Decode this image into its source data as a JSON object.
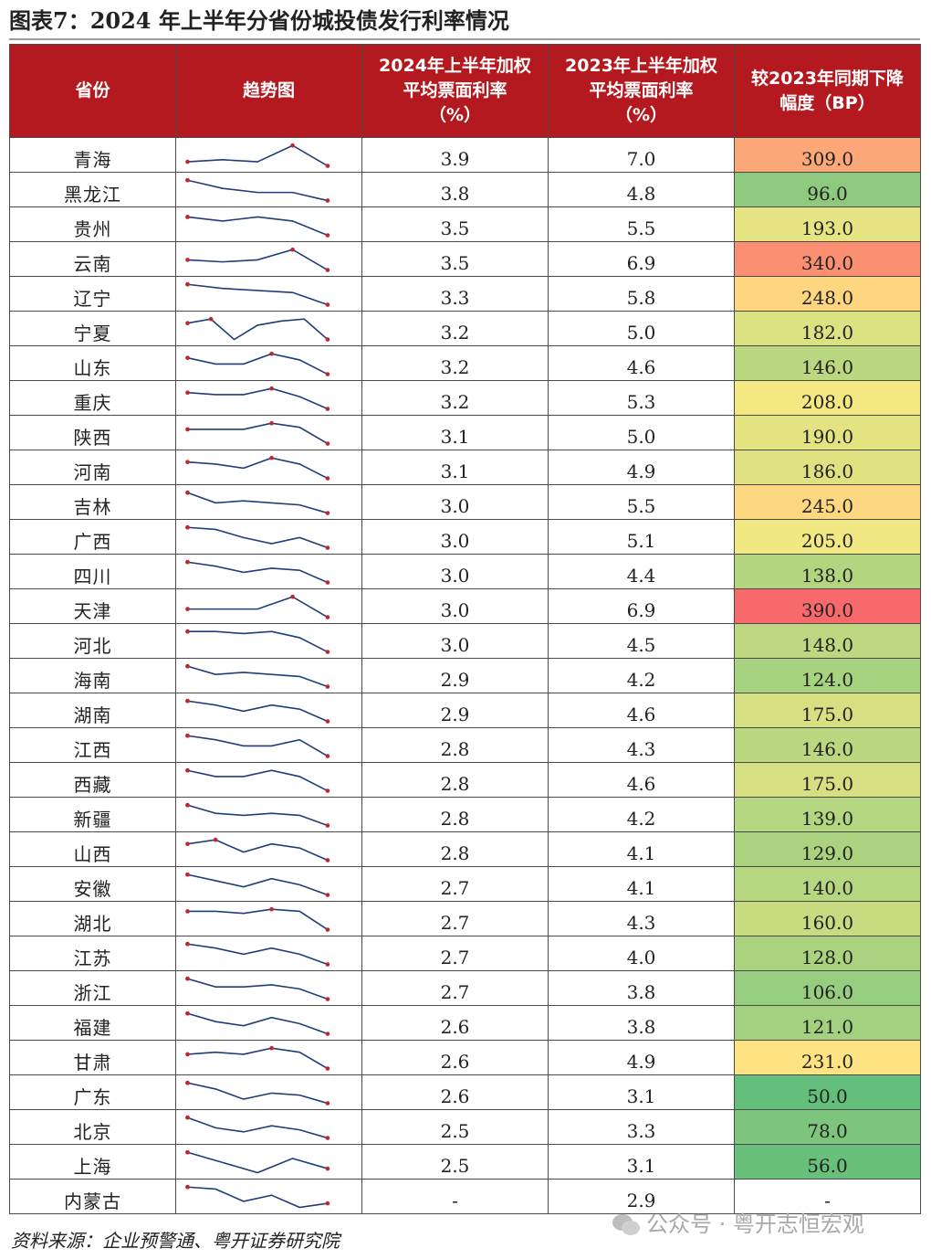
{
  "figure": {
    "title": "图表7：2024 年上半年分省份城投债发行利率情况",
    "source": "资料来源：企业预警通、粤开证券研究院",
    "watermark": "公众号 · 粤开志恒宏观"
  },
  "table": {
    "headers": {
      "province": "省份",
      "trend": "趋势图",
      "rate2024": [
        "2024年上半年加权",
        "平均票面利率",
        "（%）"
      ],
      "rate2023": [
        "2023年上半年加权",
        "平均票面利率",
        "（%）"
      ],
      "decline": [
        "较2023年同期下降",
        "幅度（BP）"
      ]
    },
    "colors": {
      "header_bg": "#b3191f",
      "spark_line": "#1f3d7a",
      "spark_marker": "#c0262e"
    },
    "rows": [
      {
        "province": "青海",
        "rate2024": "3.9",
        "rate2023": "7.0",
        "decline": "309.0",
        "trend": [
          0.8,
          0.7,
          0.8,
          0.0,
          1.0
        ]
      },
      {
        "province": "黑龙江",
        "rate2024": "3.8",
        "rate2023": "4.8",
        "decline": "96.0",
        "trend": [
          0.0,
          0.4,
          0.6,
          0.6,
          1.0
        ]
      },
      {
        "province": "贵州",
        "rate2024": "3.5",
        "rate2023": "5.5",
        "decline": "193.0",
        "trend": [
          0.1,
          0.3,
          0.1,
          0.3,
          1.0
        ]
      },
      {
        "province": "云南",
        "rate2024": "3.5",
        "rate2023": "6.9",
        "decline": "340.0",
        "trend": [
          0.5,
          0.6,
          0.5,
          0.0,
          1.0
        ]
      },
      {
        "province": "辽宁",
        "rate2024": "3.3",
        "rate2023": "5.8",
        "decline": "248.0",
        "trend": [
          0.0,
          0.2,
          0.3,
          0.4,
          1.0
        ]
      },
      {
        "province": "宁夏",
        "rate2024": "3.2",
        "rate2023": "5.0",
        "decline": "182.0",
        "trend": [
          0.2,
          0.0,
          1.0,
          0.3,
          0.1,
          0.0,
          1.0
        ]
      },
      {
        "province": "山东",
        "rate2024": "3.2",
        "rate2023": "4.6",
        "decline": "146.0",
        "trend": [
          0.2,
          0.5,
          0.5,
          0.0,
          0.3,
          1.0
        ]
      },
      {
        "province": "重庆",
        "rate2024": "3.2",
        "rate2023": "5.3",
        "decline": "208.0",
        "trend": [
          0.2,
          0.3,
          0.3,
          0.0,
          0.4,
          1.0
        ]
      },
      {
        "province": "陕西",
        "rate2024": "3.1",
        "rate2023": "5.0",
        "decline": "190.0",
        "trend": [
          0.3,
          0.3,
          0.3,
          0.0,
          0.2,
          1.0
        ]
      },
      {
        "province": "河南",
        "rate2024": "3.1",
        "rate2023": "4.9",
        "decline": "186.0",
        "trend": [
          0.2,
          0.3,
          0.5,
          0.0,
          0.3,
          1.0
        ]
      },
      {
        "province": "吉林",
        "rate2024": "3.0",
        "rate2023": "5.5",
        "decline": "245.0",
        "trend": [
          0.0,
          0.5,
          0.4,
          0.5,
          0.6,
          1.0
        ]
      },
      {
        "province": "广西",
        "rate2024": "3.0",
        "rate2023": "5.1",
        "decline": "205.0",
        "trend": [
          0.0,
          0.1,
          0.5,
          0.8,
          0.5,
          1.0
        ]
      },
      {
        "province": "四川",
        "rate2024": "3.0",
        "rate2023": "4.4",
        "decline": "138.0",
        "trend": [
          0.0,
          0.2,
          0.5,
          0.3,
          0.4,
          1.0
        ]
      },
      {
        "province": "天津",
        "rate2024": "3.0",
        "rate2023": "6.9",
        "decline": "390.0",
        "trend": [
          0.6,
          0.6,
          0.6,
          0.0,
          1.0
        ]
      },
      {
        "province": "河北",
        "rate2024": "3.0",
        "rate2023": "4.5",
        "decline": "148.0",
        "trend": [
          0.0,
          0.0,
          0.1,
          0.0,
          0.3,
          1.0
        ]
      },
      {
        "province": "海南",
        "rate2024": "2.9",
        "rate2023": "4.2",
        "decline": "124.0",
        "trend": [
          0.0,
          0.4,
          0.3,
          0.4,
          0.5,
          1.0
        ]
      },
      {
        "province": "湖南",
        "rate2024": "2.9",
        "rate2023": "4.6",
        "decline": "175.0",
        "trend": [
          0.0,
          0.2,
          0.5,
          0.2,
          0.4,
          1.0
        ]
      },
      {
        "province": "江西",
        "rate2024": "2.8",
        "rate2023": "4.3",
        "decline": "146.0",
        "trend": [
          0.0,
          0.2,
          0.5,
          0.5,
          0.2,
          1.0
        ]
      },
      {
        "province": "西藏",
        "rate2024": "2.8",
        "rate2023": "4.6",
        "decline": "175.0",
        "trend": [
          0.0,
          0.3,
          0.3,
          0.0,
          0.3,
          1.0
        ]
      },
      {
        "province": "新疆",
        "rate2024": "2.8",
        "rate2023": "4.2",
        "decline": "139.0",
        "trend": [
          0.0,
          0.4,
          0.5,
          0.4,
          0.5,
          1.0
        ]
      },
      {
        "province": "山西",
        "rate2024": "2.8",
        "rate2023": "4.1",
        "decline": "129.0",
        "trend": [
          0.2,
          0.0,
          0.6,
          0.2,
          0.4,
          1.0
        ]
      },
      {
        "province": "安徽",
        "rate2024": "2.7",
        "rate2023": "4.1",
        "decline": "140.0",
        "trend": [
          0.0,
          0.3,
          0.6,
          0.2,
          0.5,
          1.0
        ]
      },
      {
        "province": "湖北",
        "rate2024": "2.7",
        "rate2023": "4.3",
        "decline": "160.0",
        "trend": [
          0.1,
          0.1,
          0.2,
          0.0,
          0.1,
          1.0
        ]
      },
      {
        "province": "江苏",
        "rate2024": "2.7",
        "rate2023": "4.0",
        "decline": "128.0",
        "trend": [
          0.0,
          0.2,
          0.5,
          0.2,
          0.5,
          1.0
        ]
      },
      {
        "province": "浙江",
        "rate2024": "2.7",
        "rate2023": "3.8",
        "decline": "106.0",
        "trend": [
          0.0,
          0.4,
          0.4,
          0.3,
          0.5,
          1.0
        ]
      },
      {
        "province": "福建",
        "rate2024": "2.6",
        "rate2023": "3.8",
        "decline": "121.0",
        "trend": [
          0.0,
          0.4,
          0.6,
          0.2,
          0.5,
          1.0
        ]
      },
      {
        "province": "甘肃",
        "rate2024": "2.6",
        "rate2023": "4.9",
        "decline": "231.0",
        "trend": [
          0.3,
          0.2,
          0.3,
          0.0,
          0.2,
          1.0
        ]
      },
      {
        "province": "广东",
        "rate2024": "2.6",
        "rate2023": "3.1",
        "decline": "50.0",
        "trend": [
          0.0,
          0.3,
          0.8,
          0.5,
          0.6,
          1.0
        ]
      },
      {
        "province": "北京",
        "rate2024": "2.5",
        "rate2023": "3.3",
        "decline": "78.0",
        "trend": [
          0.0,
          0.5,
          0.7,
          0.4,
          0.6,
          1.0
        ]
      },
      {
        "province": "上海",
        "rate2024": "2.5",
        "rate2023": "3.1",
        "decline": "56.0",
        "trend": [
          0.0,
          0.5,
          1.0,
          0.3,
          0.8
        ]
      },
      {
        "province": "内蒙古",
        "rate2024": "-",
        "rate2023": "2.9",
        "decline": "-",
        "trend": [
          0.0,
          0.1,
          0.7,
          0.4,
          1.0,
          0.8
        ]
      }
    ]
  }
}
